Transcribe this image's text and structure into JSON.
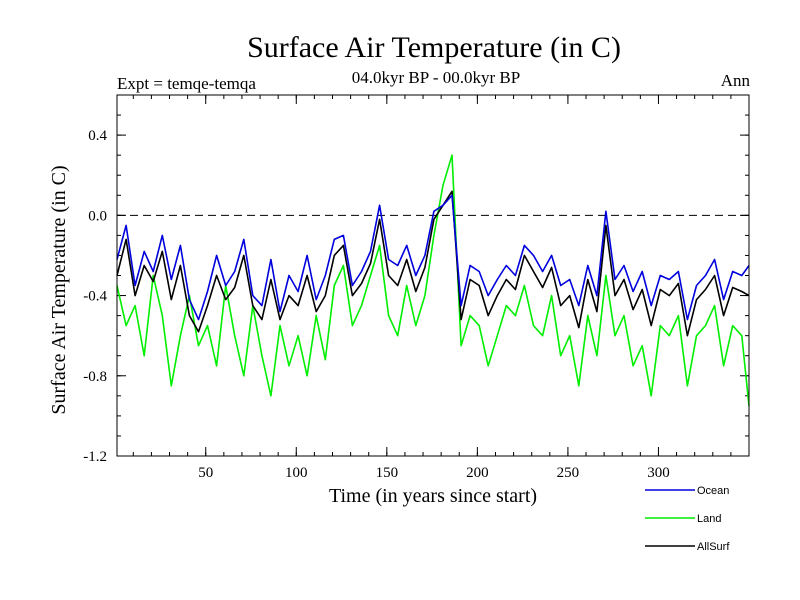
{
  "chart_data": {
    "type": "line",
    "title": "Surface Air Temperature (in C)",
    "subtitle": "04.0kyr BP - 00.0kyr BP",
    "left_label": "Expt = temqe-temqa",
    "right_label": "Ann",
    "xlabel": "Time (in years since start)",
    "ylabel": "Surface Air Temperature (in C)",
    "xlim": [
      1,
      350
    ],
    "ylim": [
      -1.2,
      0.6
    ],
    "x_ticks": [
      50,
      100,
      150,
      200,
      250,
      300
    ],
    "y_ticks": [
      0.4,
      0.0,
      -0.4,
      -0.8,
      -1.2
    ],
    "y_tick_labels": [
      "0.4",
      "0.0",
      "-0.4",
      "-0.8",
      "-1.2"
    ],
    "reference_line": 0.0,
    "legend_position": "bottom-right",
    "colors": {
      "Ocean": "#0000dd",
      "Land": "#00ee00",
      "AllSurf": "#000000"
    },
    "x": [
      1,
      6,
      11,
      16,
      21,
      26,
      31,
      36,
      41,
      46,
      51,
      56,
      61,
      66,
      71,
      76,
      81,
      86,
      91,
      96,
      101,
      106,
      111,
      116,
      121,
      126,
      131,
      136,
      141,
      146,
      151,
      156,
      161,
      166,
      171,
      176,
      181,
      186,
      191,
      196,
      201,
      206,
      211,
      216,
      221,
      226,
      231,
      236,
      241,
      246,
      251,
      256,
      261,
      266,
      271,
      276,
      281,
      286,
      291,
      296,
      301,
      306,
      311,
      316,
      321,
      326,
      331,
      336,
      341,
      346,
      350
    ],
    "series": [
      {
        "name": "Ocean",
        "values": [
          -0.22,
          -0.05,
          -0.35,
          -0.18,
          -0.28,
          -0.1,
          -0.32,
          -0.15,
          -0.42,
          -0.52,
          -0.38,
          -0.2,
          -0.35,
          -0.28,
          -0.12,
          -0.4,
          -0.45,
          -0.22,
          -0.48,
          -0.3,
          -0.38,
          -0.2,
          -0.42,
          -0.3,
          -0.12,
          -0.1,
          -0.35,
          -0.28,
          -0.18,
          0.05,
          -0.22,
          -0.25,
          -0.15,
          -0.3,
          -0.2,
          0.02,
          0.05,
          0.1,
          -0.45,
          -0.25,
          -0.28,
          -0.4,
          -0.32,
          -0.25,
          -0.3,
          -0.15,
          -0.2,
          -0.28,
          -0.2,
          -0.35,
          -0.32,
          -0.45,
          -0.25,
          -0.4,
          0.02,
          -0.32,
          -0.25,
          -0.38,
          -0.28,
          -0.45,
          -0.3,
          -0.32,
          -0.28,
          -0.52,
          -0.35,
          -0.3,
          -0.22,
          -0.42,
          -0.28,
          -0.3,
          -0.25
        ]
      },
      {
        "name": "Land",
        "values": [
          -0.35,
          -0.55,
          -0.45,
          -0.7,
          -0.3,
          -0.5,
          -0.85,
          -0.6,
          -0.4,
          -0.65,
          -0.55,
          -0.75,
          -0.35,
          -0.6,
          -0.8,
          -0.45,
          -0.7,
          -0.9,
          -0.55,
          -0.75,
          -0.6,
          -0.8,
          -0.5,
          -0.72,
          -0.35,
          -0.25,
          -0.55,
          -0.45,
          -0.3,
          -0.15,
          -0.5,
          -0.6,
          -0.35,
          -0.55,
          -0.4,
          -0.1,
          0.15,
          0.3,
          -0.65,
          -0.5,
          -0.55,
          -0.75,
          -0.6,
          -0.45,
          -0.5,
          -0.35,
          -0.55,
          -0.6,
          -0.4,
          -0.7,
          -0.6,
          -0.85,
          -0.5,
          -0.7,
          -0.3,
          -0.6,
          -0.5,
          -0.75,
          -0.65,
          -0.9,
          -0.55,
          -0.6,
          -0.5,
          -0.85,
          -0.6,
          -0.55,
          -0.45,
          -0.75,
          -0.55,
          -0.6,
          -0.95
        ]
      },
      {
        "name": "AllSurf",
        "values": [
          -0.3,
          -0.12,
          -0.4,
          -0.25,
          -0.33,
          -0.18,
          -0.42,
          -0.25,
          -0.5,
          -0.58,
          -0.45,
          -0.3,
          -0.42,
          -0.36,
          -0.2,
          -0.45,
          -0.52,
          -0.32,
          -0.52,
          -0.4,
          -0.45,
          -0.3,
          -0.48,
          -0.4,
          -0.2,
          -0.15,
          -0.4,
          -0.34,
          -0.24,
          -0.02,
          -0.3,
          -0.35,
          -0.22,
          -0.38,
          -0.26,
          -0.02,
          0.05,
          0.12,
          -0.52,
          -0.32,
          -0.35,
          -0.5,
          -0.4,
          -0.32,
          -0.37,
          -0.2,
          -0.28,
          -0.36,
          -0.26,
          -0.45,
          -0.4,
          -0.56,
          -0.32,
          -0.48,
          -0.05,
          -0.4,
          -0.32,
          -0.47,
          -0.37,
          -0.55,
          -0.37,
          -0.4,
          -0.34,
          -0.6,
          -0.42,
          -0.37,
          -0.3,
          -0.5,
          -0.36,
          -0.38,
          -0.4
        ]
      }
    ]
  }
}
